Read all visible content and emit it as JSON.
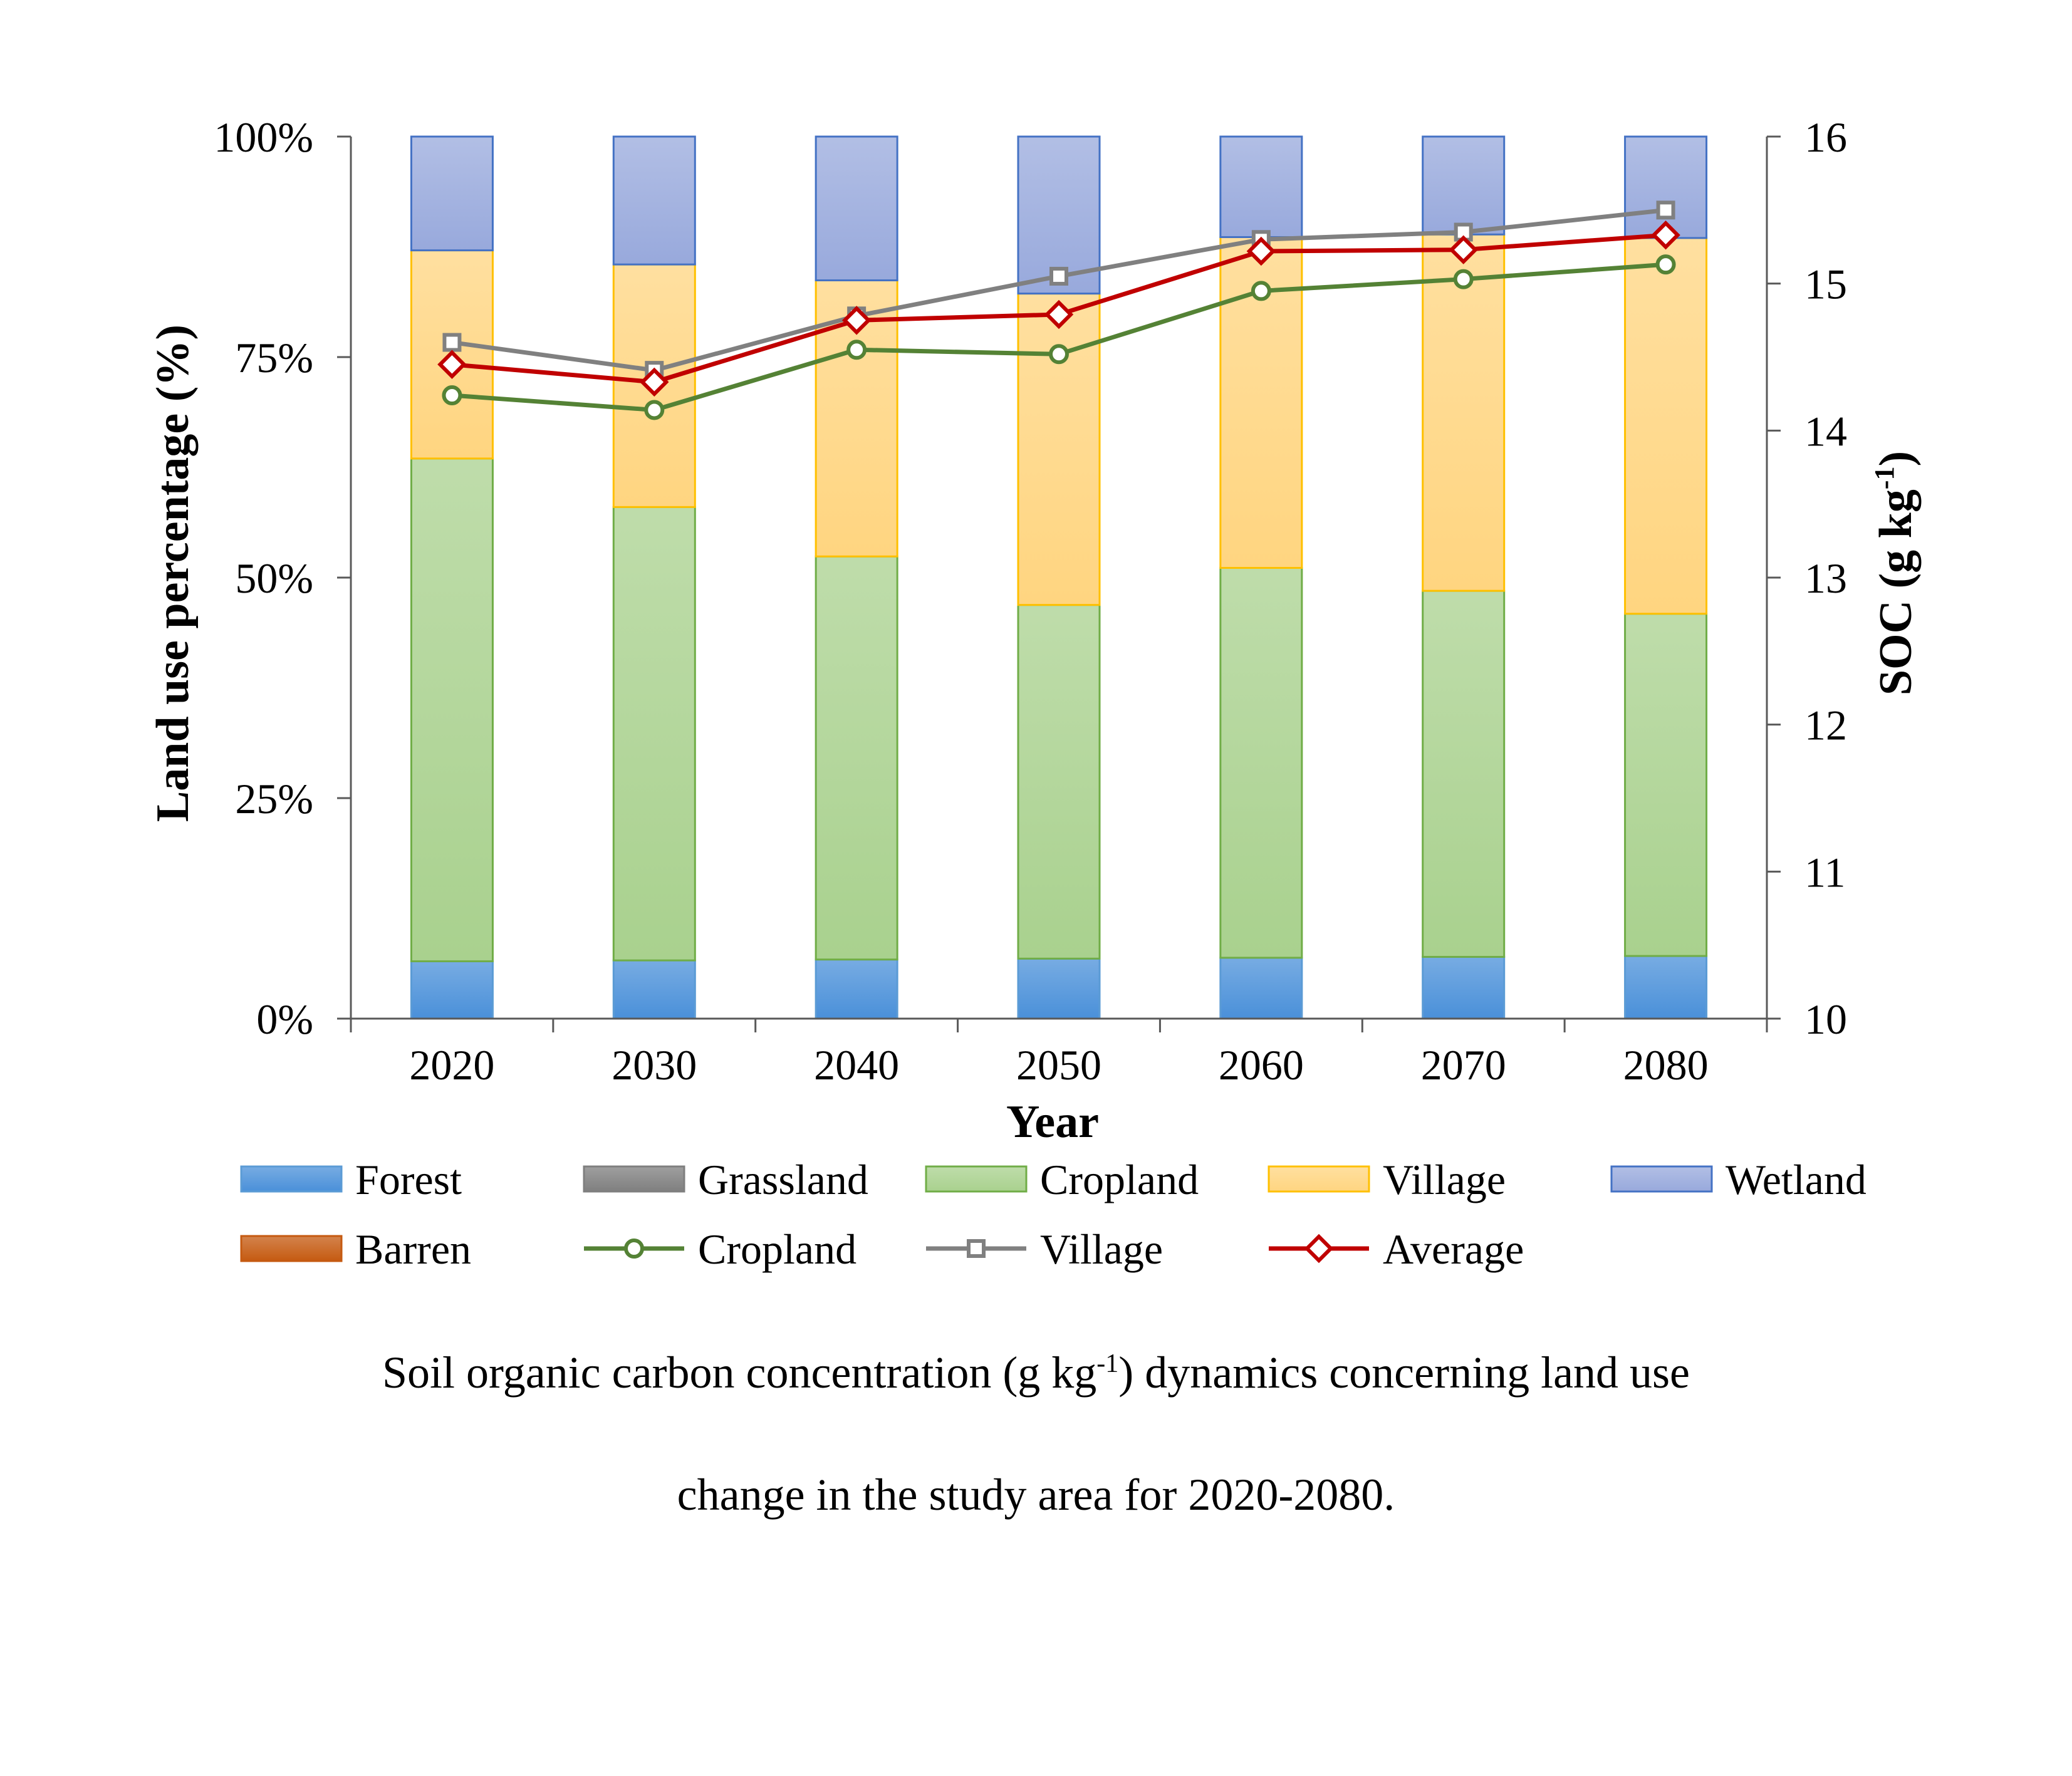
{
  "chart_data": {
    "type": "bar",
    "stacked": true,
    "categories": [
      "2020",
      "2030",
      "2040",
      "2050",
      "2060",
      "2070",
      "2080"
    ],
    "xlabel": "Year",
    "ylabel": "Land use percentage (%)",
    "ylim": [
      0,
      100
    ],
    "yticks": [
      "0%",
      "25%",
      "50%",
      "75%",
      "100%"
    ],
    "y2label_main": "SOC (g kg",
    "y2label_sup": "-1",
    "y2label_end": ")",
    "y2lim": [
      10,
      16
    ],
    "y2ticks": [
      "10",
      "11",
      "12",
      "13",
      "14",
      "15",
      "16"
    ],
    "grid": false,
    "legend_position": "bottom",
    "bar_series": [
      {
        "name": "Forest",
        "color": "#4a90d9",
        "edge": "#5b9bd5",
        "values": [
          6.5,
          6.6,
          6.7,
          6.8,
          6.9,
          7.0,
          7.1
        ]
      },
      {
        "name": "Grassland",
        "color": "#7f7f7f",
        "edge": "#7f7f7f",
        "values": [
          0,
          0,
          0,
          0,
          0,
          0,
          0
        ]
      },
      {
        "name": "Cropland",
        "color": "#a9d18e",
        "edge": "#70ad47",
        "values": [
          57.0,
          51.4,
          45.7,
          40.1,
          44.2,
          41.5,
          38.8
        ]
      },
      {
        "name": "Village",
        "color": "#ffd580",
        "edge": "#ffc000",
        "values": [
          23.6,
          27.5,
          31.3,
          35.3,
          37.5,
          40.4,
          42.6
        ]
      },
      {
        "name": "Wetland",
        "color": "#98a9dc",
        "edge": "#4472c4",
        "values": [
          12.9,
          14.5,
          16.3,
          17.8,
          11.4,
          11.1,
          11.5
        ]
      },
      {
        "name": "Barren",
        "color": "#c55a11",
        "edge": "#c55a11",
        "values": [
          0,
          0,
          0,
          0,
          0,
          0,
          0
        ]
      }
    ],
    "line_series": [
      {
        "name": "Cropland",
        "color": "#548235",
        "marker": "circle",
        "values": [
          14.24,
          14.14,
          14.55,
          14.52,
          14.95,
          15.03,
          15.13
        ]
      },
      {
        "name": "Village",
        "color": "#808080",
        "marker": "square",
        "values": [
          14.6,
          14.41,
          14.78,
          15.05,
          15.3,
          15.35,
          15.5
        ]
      },
      {
        "name": "Average",
        "color": "#c00000",
        "marker": "diamond",
        "values": [
          14.45,
          14.33,
          14.75,
          14.79,
          15.22,
          15.23,
          15.33
        ]
      }
    ]
  },
  "caption": {
    "line1_a": "Soil organic carbon concentration (g kg",
    "line1_sup": "-1",
    "line1_b": ") dynamics concerning land use",
    "line2": "change in the study area for 2020-2080."
  }
}
